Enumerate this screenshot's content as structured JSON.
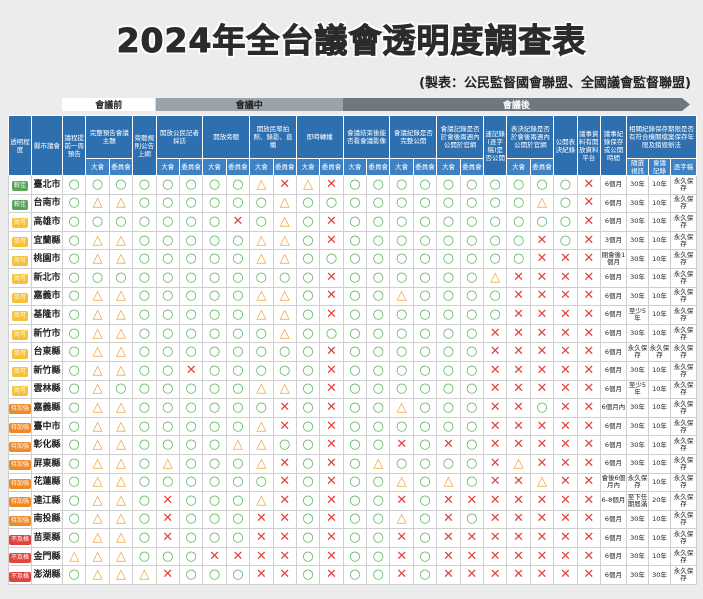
{
  "header": {
    "title": "2024年全台議會透明度調查表",
    "source": "(製表：公民監督國會聯盟、全國議會監督聯盟)"
  },
  "phases": [
    {
      "label": "會議前",
      "span": 4,
      "color": "#ffffff",
      "text": "#222"
    },
    {
      "label": "會議中",
      "span": 8,
      "color": "#9aa3ab",
      "text": "#222"
    },
    {
      "label": "會議後",
      "span": 0,
      "color": "#6f7880",
      "text": "#fff"
    }
  ],
  "colors": {
    "○": "#58b35a",
    "△": "#f2a23a",
    "✕": "#e0443e"
  },
  "level_colors": {
    "較佳": "#5aa35a",
    "尚可": "#f3c13a",
    "待加強": "#f08a24",
    "不及格": "#e0443e"
  },
  "table": {
    "columns": [
      {
        "label": "透明程度"
      },
      {
        "label": "縣市議會"
      },
      {
        "label": "議程提前一周預告"
      },
      {
        "label": "完整預告會議主題",
        "sub": [
          "大會",
          "委員會"
        ]
      },
      {
        "label": "旁聽規則公告上網"
      },
      {
        "label": "開放公民記者採訪",
        "sub": [
          "大會",
          "委員會"
        ]
      },
      {
        "label": "開放旁聽",
        "sub": [
          "大會",
          "委員會"
        ]
      },
      {
        "label": "開放民眾拍照、錄影、直播",
        "sub": [
          "大會",
          "委員會"
        ]
      },
      {
        "label": "即時轉播",
        "sub": [
          "大會",
          "委員會"
        ]
      },
      {
        "label": "會議結束後能否看會議影像",
        "sub": [
          "大會",
          "委員會"
        ]
      },
      {
        "label": "會議紀錄是否完整公開",
        "sub": [
          "大會",
          "委員會"
        ]
      },
      {
        "label": "會議記錄是否於會後兩週內公開於官網",
        "sub": [
          "大會",
          "委員會"
        ]
      },
      {
        "label": "速記錄(逐字稿)是否公開"
      },
      {
        "label": "表決紀錄是否於會後兩週內公開於官網",
        "sub": [
          "大會",
          "委員會"
        ]
      },
      {
        "label": "公開表決紀錄"
      },
      {
        "label": "議事資料有開放資料平台"
      },
      {
        "label": "議事紀錄保存或公開時間"
      },
      {
        "label": "相關紀錄保存期限是否有符合機關檔案保存年限及銷毀辦法",
        "sub": [
          "隨選視訊",
          "會議記錄",
          "逐字稿"
        ]
      }
    ],
    "rows": [
      {
        "level": "較佳",
        "name": "臺北市",
        "cells": [
          "○",
          "○",
          "○",
          "○",
          "○",
          "○",
          "○",
          "○",
          "△",
          "✕",
          "△",
          "✕",
          "○",
          "○",
          "○",
          "○",
          "○",
          "○",
          "○",
          "○",
          "○",
          "○",
          "✕",
          "6個月",
          "30年",
          "10年",
          "永久保存"
        ]
      },
      {
        "level": "較佳",
        "name": "台南市",
        "cells": [
          "○",
          "△",
          "△",
          "○",
          "○",
          "○",
          "○",
          "○",
          "○",
          "△",
          "○",
          "○",
          "○",
          "○",
          "○",
          "○",
          "○",
          "○",
          "○",
          "○",
          "△",
          "○",
          "✕",
          "6個月",
          "30年",
          "10年",
          "永久保存"
        ]
      },
      {
        "level": "尚可",
        "name": "高雄市",
        "cells": [
          "○",
          "○",
          "○",
          "○",
          "○",
          "○",
          "○",
          "✕",
          "○",
          "△",
          "○",
          "✕",
          "○",
          "○",
          "○",
          "○",
          "○",
          "○",
          "○",
          "○",
          "○",
          "○",
          "✕",
          "6個月",
          "30年",
          "10年",
          "永久保存"
        ]
      },
      {
        "level": "尚可",
        "name": "宜蘭縣",
        "cells": [
          "○",
          "△",
          "△",
          "○",
          "○",
          "○",
          "○",
          "○",
          "△",
          "△",
          "○",
          "✕",
          "○",
          "○",
          "○",
          "○",
          "○",
          "○",
          "○",
          "○",
          "✕",
          "○",
          "✕",
          "3個月",
          "30年",
          "10年",
          "永久保存"
        ]
      },
      {
        "level": "尚可",
        "name": "桃園市",
        "cells": [
          "○",
          "△",
          "△",
          "○",
          "○",
          "○",
          "○",
          "○",
          "△",
          "△",
          "○",
          "○",
          "○",
          "○",
          "○",
          "○",
          "○",
          "○",
          "○",
          "○",
          "✕",
          "✕",
          "✕",
          "閉會後1個月",
          "30年",
          "10年",
          "永久保存"
        ]
      },
      {
        "level": "尚可",
        "name": "新北市",
        "cells": [
          "○",
          "○",
          "○",
          "○",
          "○",
          "○",
          "○",
          "○",
          "○",
          "○",
          "○",
          "✕",
          "○",
          "○",
          "○",
          "○",
          "○",
          "○",
          "△",
          "✕",
          "✕",
          "✕",
          "✕",
          "6個月",
          "30年",
          "10年",
          "永久保存"
        ]
      },
      {
        "level": "尚可",
        "name": "嘉義市",
        "cells": [
          "○",
          "△",
          "△",
          "○",
          "○",
          "○",
          "○",
          "○",
          "△",
          "△",
          "○",
          "✕",
          "○",
          "○",
          "△",
          "○",
          "○",
          "○",
          "○",
          "✕",
          "✕",
          "✕",
          "✕",
          "6個月",
          "30年",
          "10年",
          "永久保存"
        ]
      },
      {
        "level": "尚可",
        "name": "基隆市",
        "cells": [
          "○",
          "△",
          "△",
          "○",
          "○",
          "○",
          "○",
          "○",
          "△",
          "△",
          "○",
          "✕",
          "○",
          "○",
          "○",
          "○",
          "○",
          "○",
          "○",
          "✕",
          "✕",
          "✕",
          "✕",
          "6個月",
          "至少5年",
          "10年",
          "永久保存"
        ]
      },
      {
        "level": "尚可",
        "name": "新竹市",
        "cells": [
          "○",
          "△",
          "△",
          "○",
          "○",
          "○",
          "○",
          "○",
          "○",
          "△",
          "○",
          "○",
          "○",
          "○",
          "○",
          "○",
          "○",
          "○",
          "✕",
          "✕",
          "✕",
          "✕",
          "✕",
          "6個月",
          "30年",
          "10年",
          "永久保存"
        ]
      },
      {
        "level": "尚可",
        "name": "台東縣",
        "cells": [
          "○",
          "△",
          "△",
          "○",
          "○",
          "○",
          "○",
          "○",
          "○",
          "○",
          "○",
          "✕",
          "○",
          "○",
          "○",
          "○",
          "○",
          "○",
          "✕",
          "✕",
          "✕",
          "✕",
          "✕",
          "6個月",
          "永久保存",
          "永久保存",
          "永久保存"
        ]
      },
      {
        "level": "尚可",
        "name": "新竹縣",
        "cells": [
          "○",
          "△",
          "△",
          "○",
          "○",
          "✕",
          "○",
          "○",
          "○",
          "○",
          "○",
          "✕",
          "○",
          "○",
          "○",
          "○",
          "○",
          "○",
          "✕",
          "✕",
          "✕",
          "✕",
          "✕",
          "6個月",
          "30年",
          "10年",
          "永久保存"
        ]
      },
      {
        "level": "尚可",
        "name": "雲林縣",
        "cells": [
          "○",
          "△",
          "○",
          "○",
          "○",
          "○",
          "○",
          "○",
          "△",
          "△",
          "○",
          "✕",
          "○",
          "○",
          "○",
          "○",
          "○",
          "○",
          "✕",
          "✕",
          "✕",
          "✕",
          "✕",
          "6個月",
          "至少5年",
          "10年",
          "永久保存"
        ]
      },
      {
        "level": "待加強",
        "name": "嘉義縣",
        "cells": [
          "○",
          "△",
          "△",
          "○",
          "○",
          "○",
          "○",
          "○",
          "○",
          "✕",
          "○",
          "✕",
          "○",
          "○",
          "△",
          "○",
          "○",
          "○",
          "✕",
          "✕",
          "○",
          "✕",
          "✕",
          "6個月內",
          "30年",
          "10年",
          "永久保存"
        ]
      },
      {
        "level": "待加強",
        "name": "臺中市",
        "cells": [
          "○",
          "△",
          "△",
          "○",
          "○",
          "○",
          "○",
          "○",
          "△",
          "✕",
          "○",
          "✕",
          "○",
          "○",
          "○",
          "○",
          "○",
          "○",
          "✕",
          "✕",
          "✕",
          "✕",
          "✕",
          "6個月",
          "30年",
          "10年",
          "永久保存"
        ]
      },
      {
        "level": "待加強",
        "name": "彰化縣",
        "cells": [
          "○",
          "△",
          "△",
          "○",
          "○",
          "○",
          "○",
          "△",
          "△",
          "○",
          "○",
          "✕",
          "○",
          "○",
          "✕",
          "○",
          "✕",
          "○",
          "✕",
          "✕",
          "✕",
          "✕",
          "✕",
          "6個月",
          "30年",
          "10年",
          "永久保存"
        ]
      },
      {
        "level": "待加強",
        "name": "屏東縣",
        "cells": [
          "○",
          "△",
          "△",
          "○",
          "△",
          "○",
          "○",
          "○",
          "△",
          "✕",
          "○",
          "✕",
          "○",
          "△",
          "○",
          "○",
          "○",
          "○",
          "✕",
          "△",
          "✕",
          "✕",
          "✕",
          "6個月",
          "30年",
          "10年",
          "永久保存"
        ]
      },
      {
        "level": "待加強",
        "name": "花蓮縣",
        "cells": [
          "○",
          "△",
          "△",
          "○",
          "○",
          "○",
          "○",
          "○",
          "○",
          "✕",
          "○",
          "✕",
          "○",
          "○",
          "△",
          "○",
          "△",
          "○",
          "✕",
          "✕",
          "△",
          "✕",
          "✕",
          "會後6個月內",
          "永久保存",
          "10年",
          "永久保存"
        ]
      },
      {
        "level": "待加強",
        "name": "連江縣",
        "cells": [
          "○",
          "△",
          "△",
          "○",
          "✕",
          "○",
          "○",
          "○",
          "△",
          "✕",
          "○",
          "✕",
          "○",
          "○",
          "✕",
          "○",
          "✕",
          "✕",
          "✕",
          "✕",
          "✕",
          "✕",
          "✕",
          "6-8個月",
          "至下任期屆滿",
          "20年",
          "永久保存"
        ]
      },
      {
        "level": "待加強",
        "name": "南投縣",
        "cells": [
          "○",
          "△",
          "△",
          "○",
          "✕",
          "○",
          "○",
          "○",
          "✕",
          "✕",
          "○",
          "✕",
          "○",
          "○",
          "△",
          "○",
          "✕",
          "○",
          "✕",
          "✕",
          "✕",
          "✕",
          "✕",
          "6個月",
          "30年",
          "10年",
          "永久保存"
        ]
      },
      {
        "level": "不及格",
        "name": "苗栗縣",
        "cells": [
          "○",
          "△",
          "△",
          "○",
          "✕",
          "○",
          "○",
          "○",
          "✕",
          "✕",
          "○",
          "✕",
          "○",
          "○",
          "✕",
          "○",
          "✕",
          "✕",
          "✕",
          "✕",
          "✕",
          "✕",
          "✕",
          "6個月",
          "30年",
          "10年",
          "永久保存"
        ]
      },
      {
        "level": "不及格",
        "name": "金門縣",
        "cells": [
          "△",
          "△",
          "△",
          "○",
          "○",
          "○",
          "✕",
          "✕",
          "✕",
          "✕",
          "○",
          "✕",
          "○",
          "○",
          "✕",
          "○",
          "✕",
          "✕",
          "✕",
          "✕",
          "✕",
          "✕",
          "✕",
          "6個月",
          "30年",
          "10年",
          "永久保存"
        ]
      },
      {
        "level": "不及格",
        "name": "澎湖縣",
        "cells": [
          "○",
          "△",
          "△",
          "△",
          "✕",
          "○",
          "○",
          "○",
          "✕",
          "✕",
          "○",
          "✕",
          "○",
          "○",
          "✕",
          "○",
          "✕",
          "✕",
          "✕",
          "✕",
          "✕",
          "✕",
          "✕",
          "6個月",
          "30年",
          "30年",
          "永久保存"
        ]
      }
    ]
  }
}
